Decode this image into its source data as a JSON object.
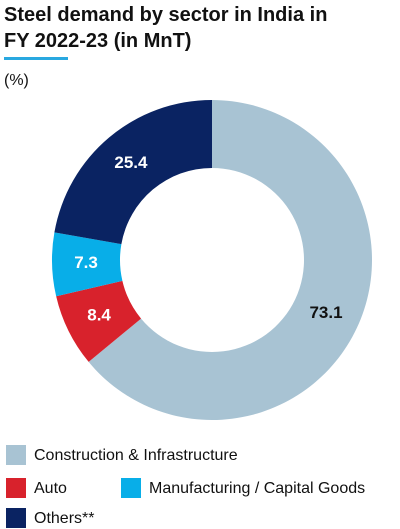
{
  "chart_data": {
    "type": "pie",
    "title": "Steel demand by sector in India in FY 2022-23 (in MnT)",
    "subtitle": "(%)",
    "categories": [
      "Construction & Infrastructure",
      "Auto",
      "Manufacturing / Capital Goods",
      "Others**"
    ],
    "values": [
      73.1,
      8.4,
      7.3,
      25.4
    ],
    "colors": [
      "#a8c3d3",
      "#d8222c",
      "#08aee8",
      "#0a2362"
    ]
  }
}
